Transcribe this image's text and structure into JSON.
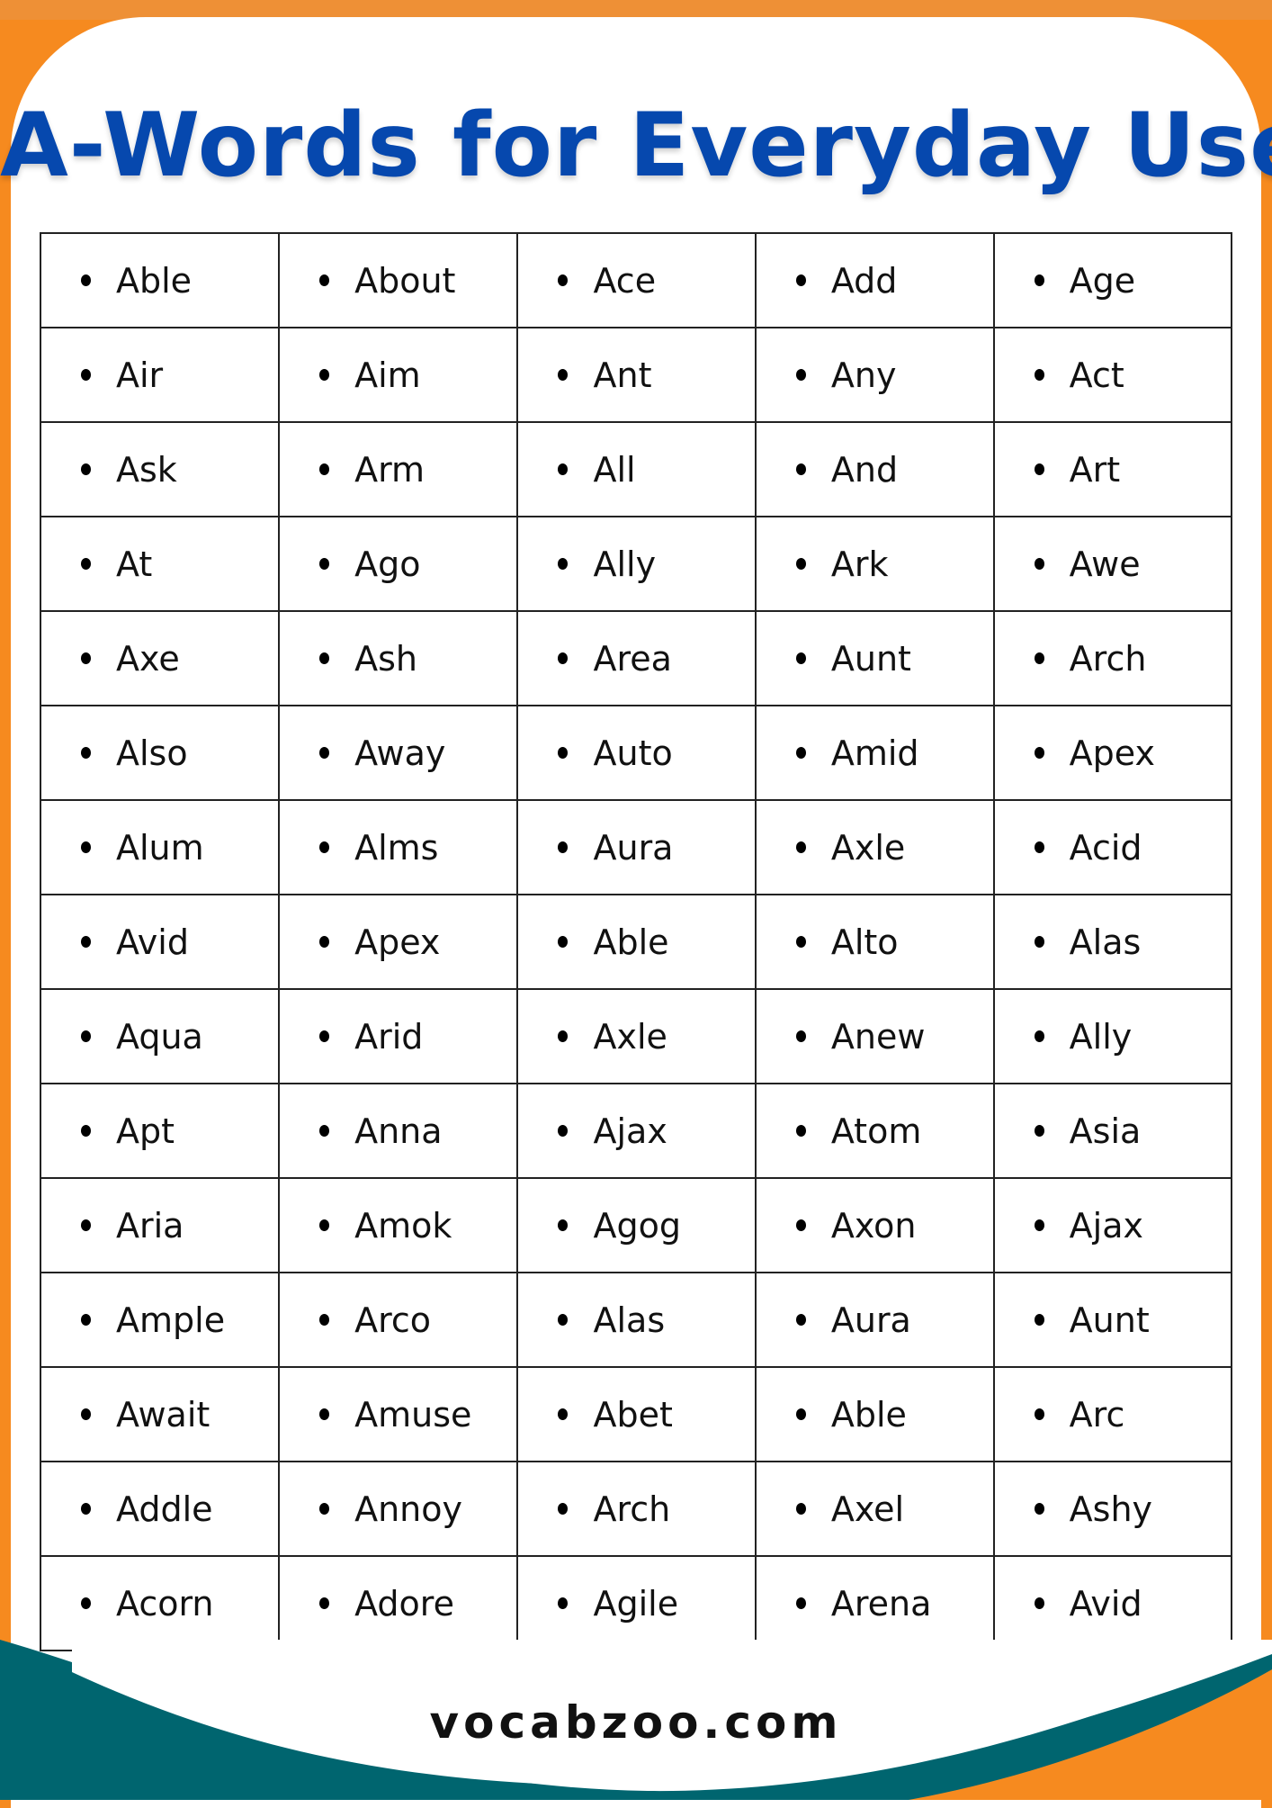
{
  "title": "A-Words for Everyday Use",
  "colors": {
    "title": "#0648AE",
    "frame": "#F68A1F",
    "wave": "#00656F"
  },
  "bullet_icon": "bullet-dot",
  "rows": [
    [
      "Able",
      "About",
      "Ace",
      "Add",
      "Age"
    ],
    [
      "Air",
      "Aim",
      "Ant",
      "Any",
      "Act"
    ],
    [
      "Ask",
      "Arm",
      "All",
      "And",
      "Art"
    ],
    [
      "At",
      "Ago",
      "Ally",
      "Ark",
      "Awe"
    ],
    [
      "Axe",
      "Ash",
      "Area",
      "Aunt",
      "Arch"
    ],
    [
      "Also",
      "Away",
      "Auto",
      "Amid",
      "Apex"
    ],
    [
      "Alum",
      "Alms",
      "Aura",
      "Axle",
      "Acid"
    ],
    [
      "Avid",
      "Apex",
      "Able",
      "Alto",
      "Alas"
    ],
    [
      "Aqua",
      "Arid",
      "Axle",
      "Anew",
      "Ally"
    ],
    [
      "Apt",
      "Anna",
      "Ajax",
      "Atom",
      "Asia"
    ],
    [
      "Aria",
      "Amok",
      "Agog",
      "Axon",
      "Ajax"
    ],
    [
      "Ample",
      "Arco",
      "Alas",
      "Aura",
      "Aunt"
    ],
    [
      "Await",
      "Amuse",
      "Abet",
      "Able",
      "Arc"
    ],
    [
      "Addle",
      "Annoy",
      "Arch",
      "Axel",
      "Ashy"
    ],
    [
      "Acorn",
      "Adore",
      "Agile",
      "Arena",
      "Avid"
    ]
  ],
  "footer": "vocabzoo.com"
}
